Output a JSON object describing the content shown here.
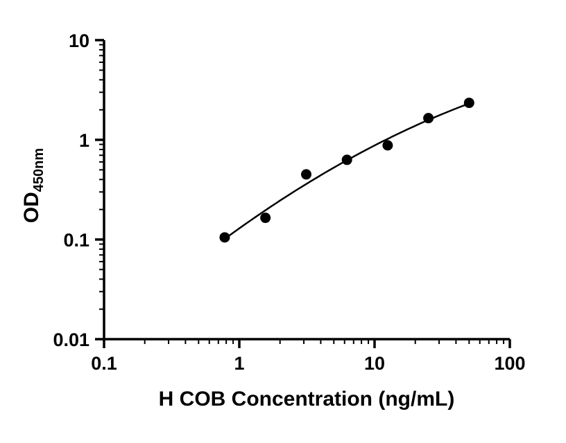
{
  "figure": {
    "background": "#ffffff",
    "axis_color": "#000000"
  },
  "chart_data": {
    "type": "scatter",
    "title": "",
    "xlabel": "H COB Concentration (ng/mL)",
    "ylabel_main": "OD",
    "ylabel_sub": "450nm",
    "x_scale": "log",
    "y_scale": "log",
    "xlim": [
      0.1,
      100
    ],
    "ylim": [
      0.01,
      10
    ],
    "x_ticks": [
      0.1,
      1,
      10,
      100
    ],
    "x_tick_labels": [
      "0.1",
      "1",
      "10",
      "100"
    ],
    "y_ticks": [
      0.01,
      0.1,
      1,
      10
    ],
    "y_tick_labels": [
      "0.01",
      "0.1",
      "1",
      "10"
    ],
    "grid": false,
    "legend": "none",
    "marker_color": "#000000",
    "line_color": "#000000",
    "points": [
      {
        "x": 0.78,
        "y": 0.105
      },
      {
        "x": 1.56,
        "y": 0.165
      },
      {
        "x": 3.125,
        "y": 0.45
      },
      {
        "x": 6.25,
        "y": 0.63
      },
      {
        "x": 12.5,
        "y": 0.88
      },
      {
        "x": 25,
        "y": 1.65
      },
      {
        "x": 50,
        "y": 2.35
      }
    ],
    "trendline": {
      "type": "quadratic-loglog-fit"
    }
  }
}
